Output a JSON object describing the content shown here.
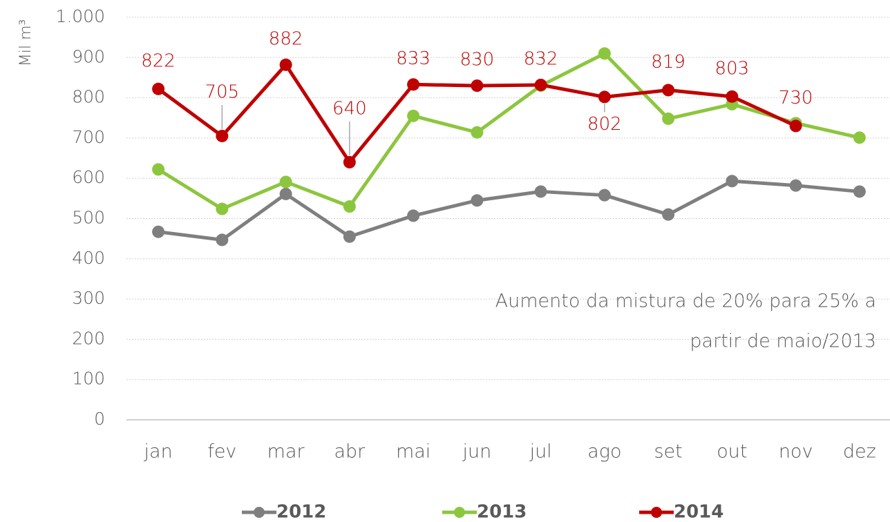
{
  "chart_data": {
    "type": "line",
    "y_label": "Mil m³",
    "categories": [
      "jan",
      "fev",
      "mar",
      "abr",
      "mai",
      "jun",
      "jul",
      "ago",
      "set",
      "out",
      "nov",
      "dez"
    ],
    "series": [
      {
        "name": "2012",
        "color": "#7f7f7f",
        "values": [
          467,
          447,
          561,
          455,
          507,
          545,
          567,
          558,
          510,
          593,
          582,
          567
        ]
      },
      {
        "name": "2013",
        "color": "#8cc63e",
        "values": [
          622,
          524,
          591,
          530,
          755,
          714,
          830,
          910,
          748,
          784,
          737,
          701
        ]
      },
      {
        "name": "2014",
        "color": "#c00000",
        "values": [
          822,
          705,
          882,
          640,
          833,
          830,
          832,
          802,
          819,
          803,
          730,
          null
        ]
      }
    ],
    "labeled_series": 2,
    "ylim": [
      0,
      1000
    ],
    "yticks": [
      0,
      100,
      200,
      300,
      400,
      500,
      600,
      700,
      800,
      900,
      {
        "value": 1000,
        "label": "1.000"
      }
    ],
    "grid": true,
    "legend": "bottom",
    "annotation": [
      "Aumento da mistura de 20% para 25% a",
      "partir de maio/2013"
    ]
  }
}
